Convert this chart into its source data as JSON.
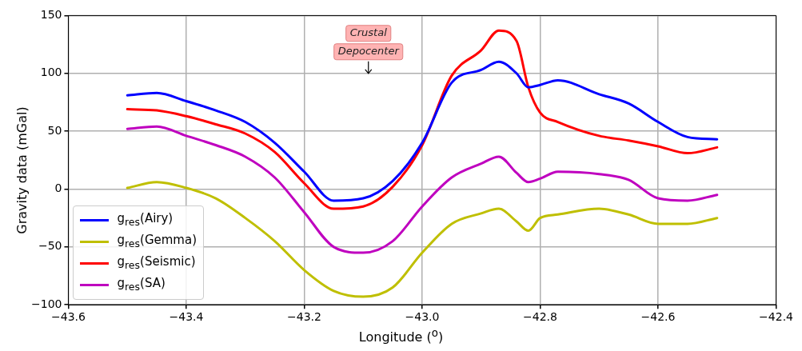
{
  "chart_data": {
    "type": "line",
    "xlabel": "Longitude ($^{o}$)",
    "ylabel": "Gravity data (mGal)",
    "x": [
      -43.5,
      -43.45,
      -43.4,
      -43.35,
      -43.3,
      -43.25,
      -43.2,
      -43.15,
      -43.1,
      -43.05,
      -43.0,
      -42.95,
      -42.9,
      -42.87,
      -42.84,
      -42.82,
      -42.8,
      -42.77,
      -42.7,
      -42.65,
      -42.6,
      -42.55,
      -42.5
    ],
    "series": [
      {
        "name": "g$_{res}$(Airy)",
        "color": "#0000ff",
        "values": [
          81,
          83,
          76,
          68,
          58,
          40,
          15,
          -10,
          -8,
          7,
          40,
          92,
          103,
          110,
          100,
          88,
          90,
          94,
          82,
          74,
          58,
          45,
          43
        ]
      },
      {
        "name": "g$_{res}$(Gemma)",
        "color": "#bfbf00",
        "values": [
          1,
          6,
          1,
          -8,
          -25,
          -45,
          -70,
          -88,
          -93,
          -85,
          -55,
          -30,
          -21,
          -17,
          -28,
          -36,
          -25,
          -22,
          -17,
          -22,
          -30,
          -30,
          -25
        ]
      },
      {
        "name": "g$_{res}$(Seismic)",
        "color": "#ff0000",
        "values": [
          69,
          68,
          63,
          56,
          48,
          32,
          5,
          -17,
          -15,
          2,
          38,
          98,
          120,
          137,
          128,
          88,
          66,
          58,
          46,
          42,
          37,
          31,
          36
        ]
      },
      {
        "name": "g$_{res}$(SA)",
        "color": "#bf00bf",
        "values": [
          52,
          54,
          46,
          38,
          28,
          10,
          -20,
          -50,
          -55,
          -45,
          -15,
          10,
          22,
          28,
          14,
          6,
          9,
          15,
          13,
          8,
          -8,
          -10,
          -5
        ]
      }
    ],
    "xlim": [
      -43.6,
      -42.4
    ],
    "xticks": [
      {
        "value": -43.6,
        "label": "−43.6"
      },
      {
        "value": -43.4,
        "label": "−43.4"
      },
      {
        "value": -43.2,
        "label": "−43.2"
      },
      {
        "value": -43.0,
        "label": "−43.0"
      },
      {
        "value": -42.8,
        "label": "−42.8"
      },
      {
        "value": -42.6,
        "label": "−42.6"
      },
      {
        "value": -42.4,
        "label": "−42.4"
      }
    ],
    "ylim": [
      -100,
      150
    ],
    "yticks": [
      {
        "value": -100,
        "label": "−100"
      },
      {
        "value": -50,
        "label": "−50"
      },
      0,
      50,
      100,
      150
    ],
    "annotations": [
      "Crustal\nDepocenter"
    ],
    "grid": true,
    "legend": "bottom left",
    "marker": "none",
    "line_style": "solid"
  }
}
